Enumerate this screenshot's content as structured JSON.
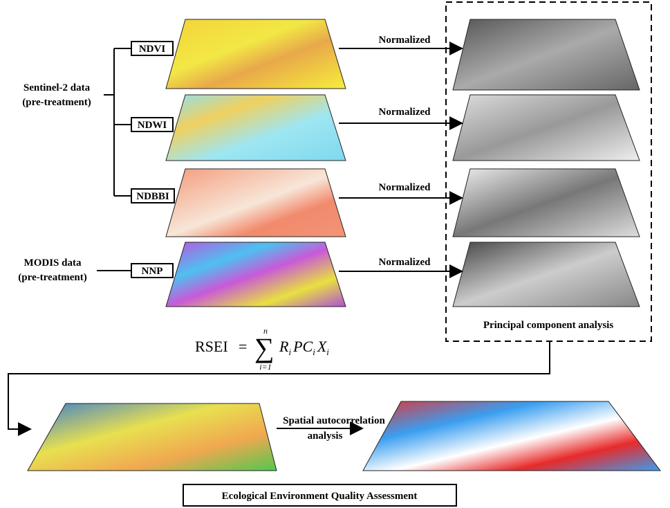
{
  "sources": [
    {
      "lines": [
        "Sentinel-2 data",
        "(pre-treatment)"
      ]
    },
    {
      "lines": [
        "MODIS data",
        "(pre-treatment)"
      ]
    }
  ],
  "indices": [
    "NDVI",
    "NDWI",
    "NDBBI",
    "NNP"
  ],
  "arrow_labels": [
    "Normalized",
    "Normalized",
    "Normalized",
    "Normalized"
  ],
  "pca_label": "Principal component analysis",
  "formula": {
    "lhs": "RSEI",
    "eq": "=",
    "sum": "∑",
    "upper": "n",
    "lower": "i=1",
    "terms": [
      "R",
      "i",
      "PC",
      "i",
      "X",
      "i"
    ]
  },
  "spatial_label": [
    "Spatial autocorrelation",
    "analysis"
  ],
  "result": "Ecological Environment Quality Assessment"
}
